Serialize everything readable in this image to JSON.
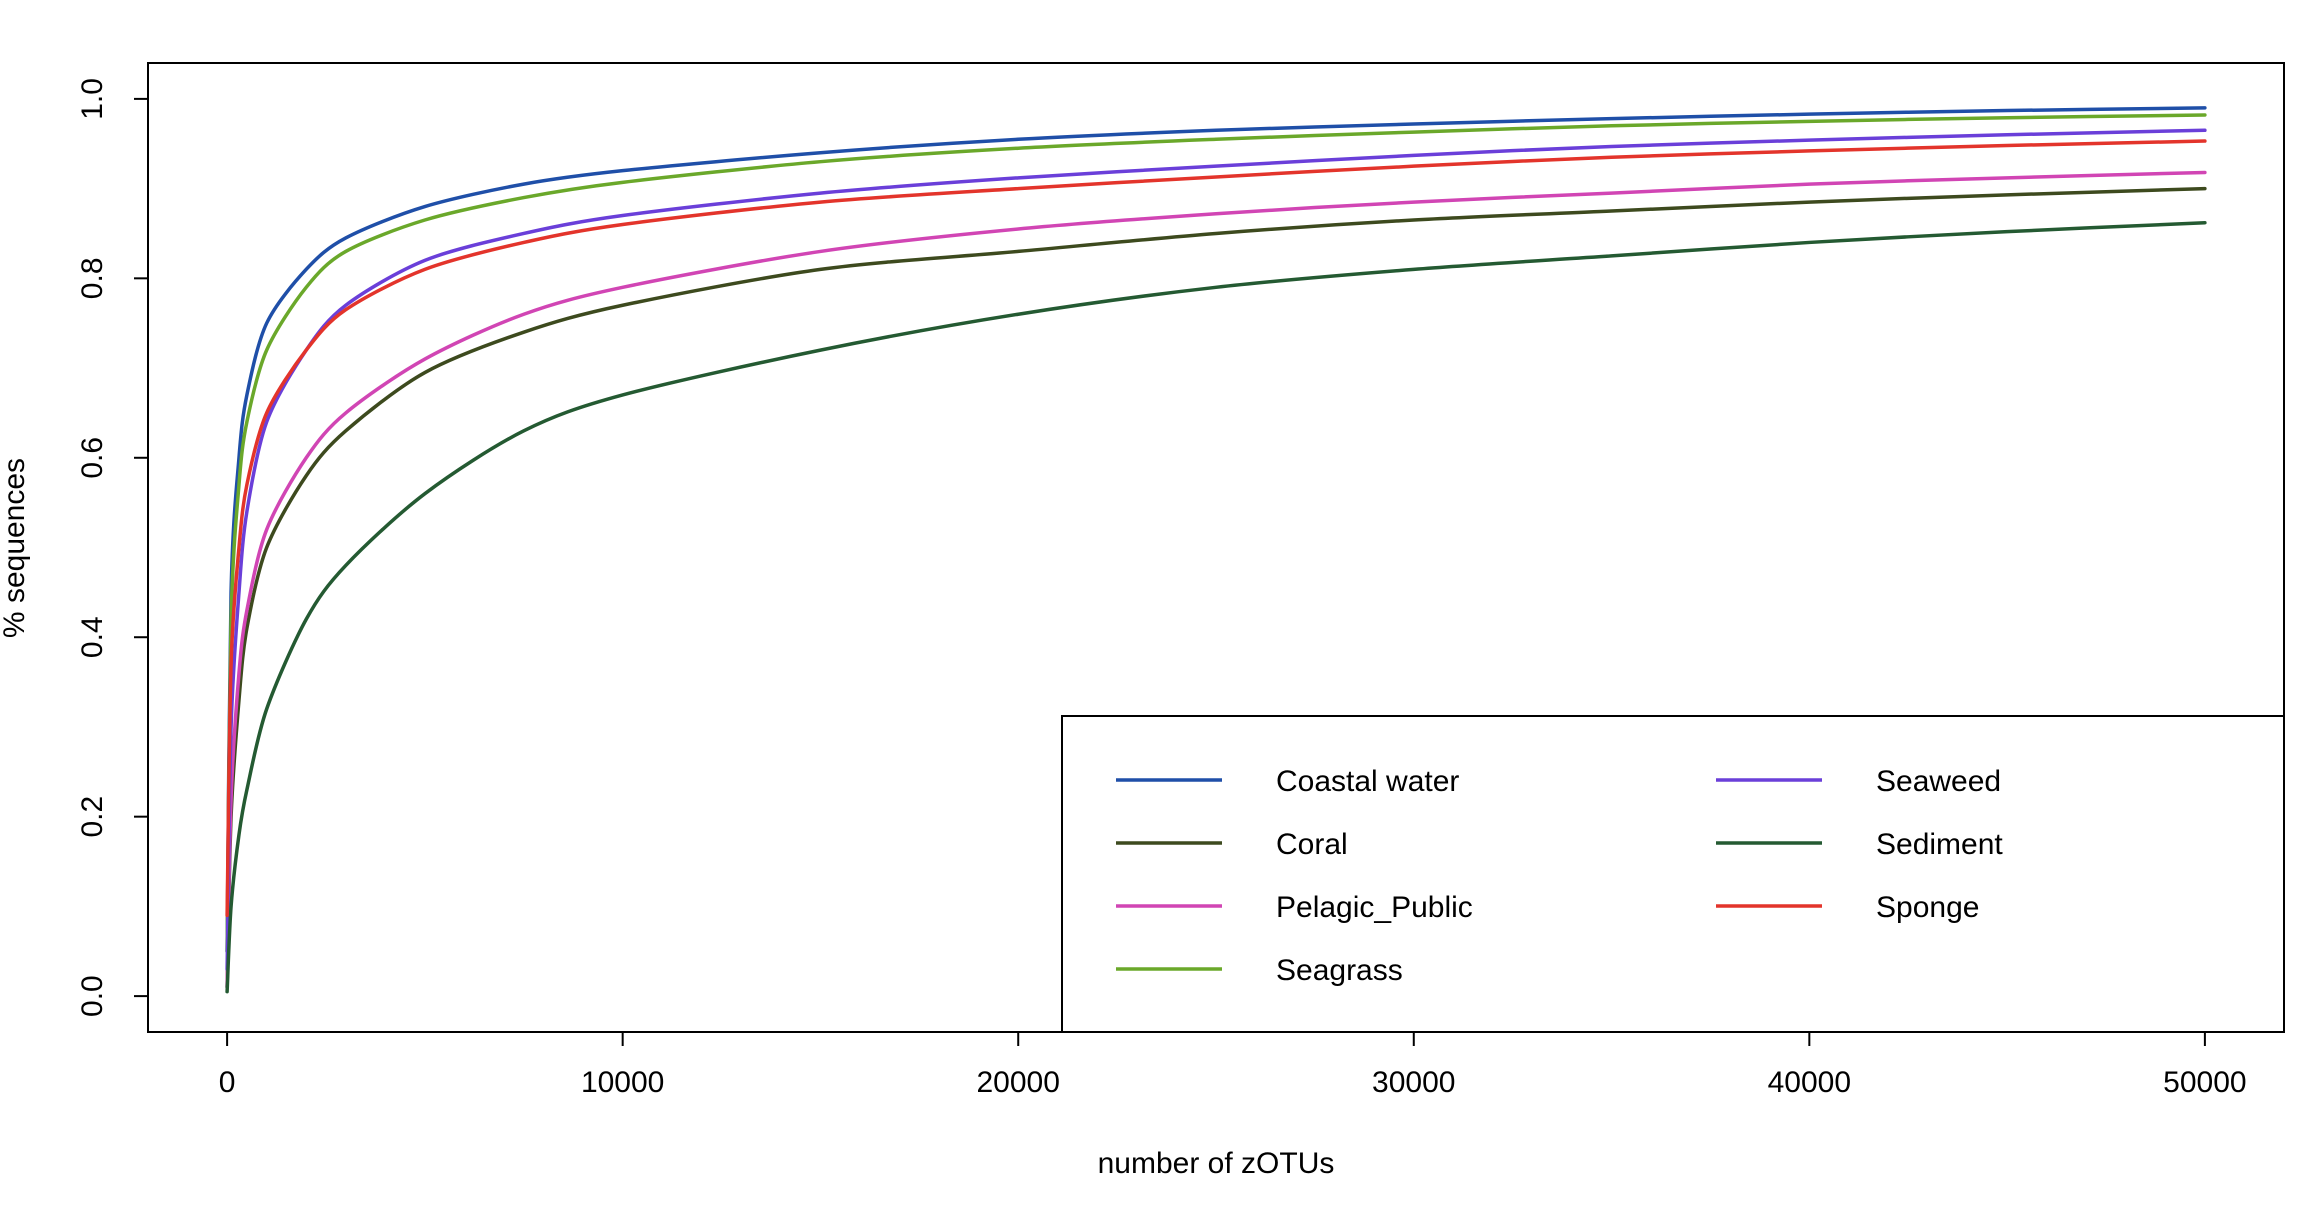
{
  "chart_data": {
    "type": "line",
    "xlabel": "number of zOTUs",
    "ylabel": "% sequences",
    "xlim": [
      -2000,
      52000
    ],
    "ylim": [
      -0.04,
      1.04
    ],
    "xticks": [
      0,
      10000,
      20000,
      30000,
      40000,
      50000
    ],
    "yticks": [
      0.0,
      0.2,
      0.4,
      0.6,
      0.8,
      1.0
    ],
    "ytick_labels": [
      "0.0",
      "0.2",
      "0.4",
      "0.6",
      "0.8",
      "1.0"
    ],
    "grid": false,
    "legend_placement": "bottom-right",
    "x": [
      0,
      100,
      300,
      500,
      1000,
      2000,
      3000,
      5000,
      7500,
      10000,
      15000,
      20000,
      25000,
      30000,
      35000,
      40000,
      45000,
      50000
    ],
    "series": [
      {
        "name": "Coastal water",
        "color": "#1f4fa8",
        "values": [
          0.05,
          0.45,
          0.6,
          0.67,
          0.75,
          0.81,
          0.845,
          0.88,
          0.905,
          0.92,
          0.94,
          0.955,
          0.965,
          0.972,
          0.978,
          0.983,
          0.987,
          0.99
        ]
      },
      {
        "name": "Coral",
        "color": "#3d4a1e",
        "values": [
          0.01,
          0.2,
          0.33,
          0.41,
          0.5,
          0.58,
          0.63,
          0.695,
          0.74,
          0.77,
          0.81,
          0.83,
          0.85,
          0.865,
          0.875,
          0.885,
          0.893,
          0.9
        ]
      },
      {
        "name": "Pelagic_Public",
        "color": "#d145b4",
        "values": [
          0.01,
          0.22,
          0.36,
          0.43,
          0.52,
          0.6,
          0.65,
          0.71,
          0.76,
          0.79,
          0.83,
          0.855,
          0.872,
          0.885,
          0.895,
          0.905,
          0.912,
          0.918
        ]
      },
      {
        "name": "Seagrass",
        "color": "#6aa82a",
        "values": [
          0.05,
          0.42,
          0.57,
          0.64,
          0.72,
          0.79,
          0.83,
          0.865,
          0.89,
          0.907,
          0.93,
          0.945,
          0.955,
          0.963,
          0.97,
          0.975,
          0.979,
          0.982
        ]
      },
      {
        "name": "Seaweed",
        "color": "#6a3fd9",
        "values": [
          0.03,
          0.3,
          0.45,
          0.54,
          0.64,
          0.72,
          0.77,
          0.82,
          0.85,
          0.87,
          0.895,
          0.912,
          0.925,
          0.937,
          0.947,
          0.954,
          0.96,
          0.965
        ]
      },
      {
        "name": "Sediment",
        "color": "#245a32",
        "values": [
          0.005,
          0.1,
          0.18,
          0.23,
          0.32,
          0.42,
          0.48,
          0.56,
          0.63,
          0.67,
          0.72,
          0.76,
          0.79,
          0.81,
          0.825,
          0.84,
          0.852,
          0.862
        ]
      },
      {
        "name": "Sponge",
        "color": "#e3342b",
        "values": [
          0.09,
          0.37,
          0.5,
          0.57,
          0.65,
          0.72,
          0.765,
          0.81,
          0.84,
          0.86,
          0.885,
          0.9,
          0.913,
          0.925,
          0.935,
          0.942,
          0.948,
          0.953
        ]
      }
    ]
  }
}
